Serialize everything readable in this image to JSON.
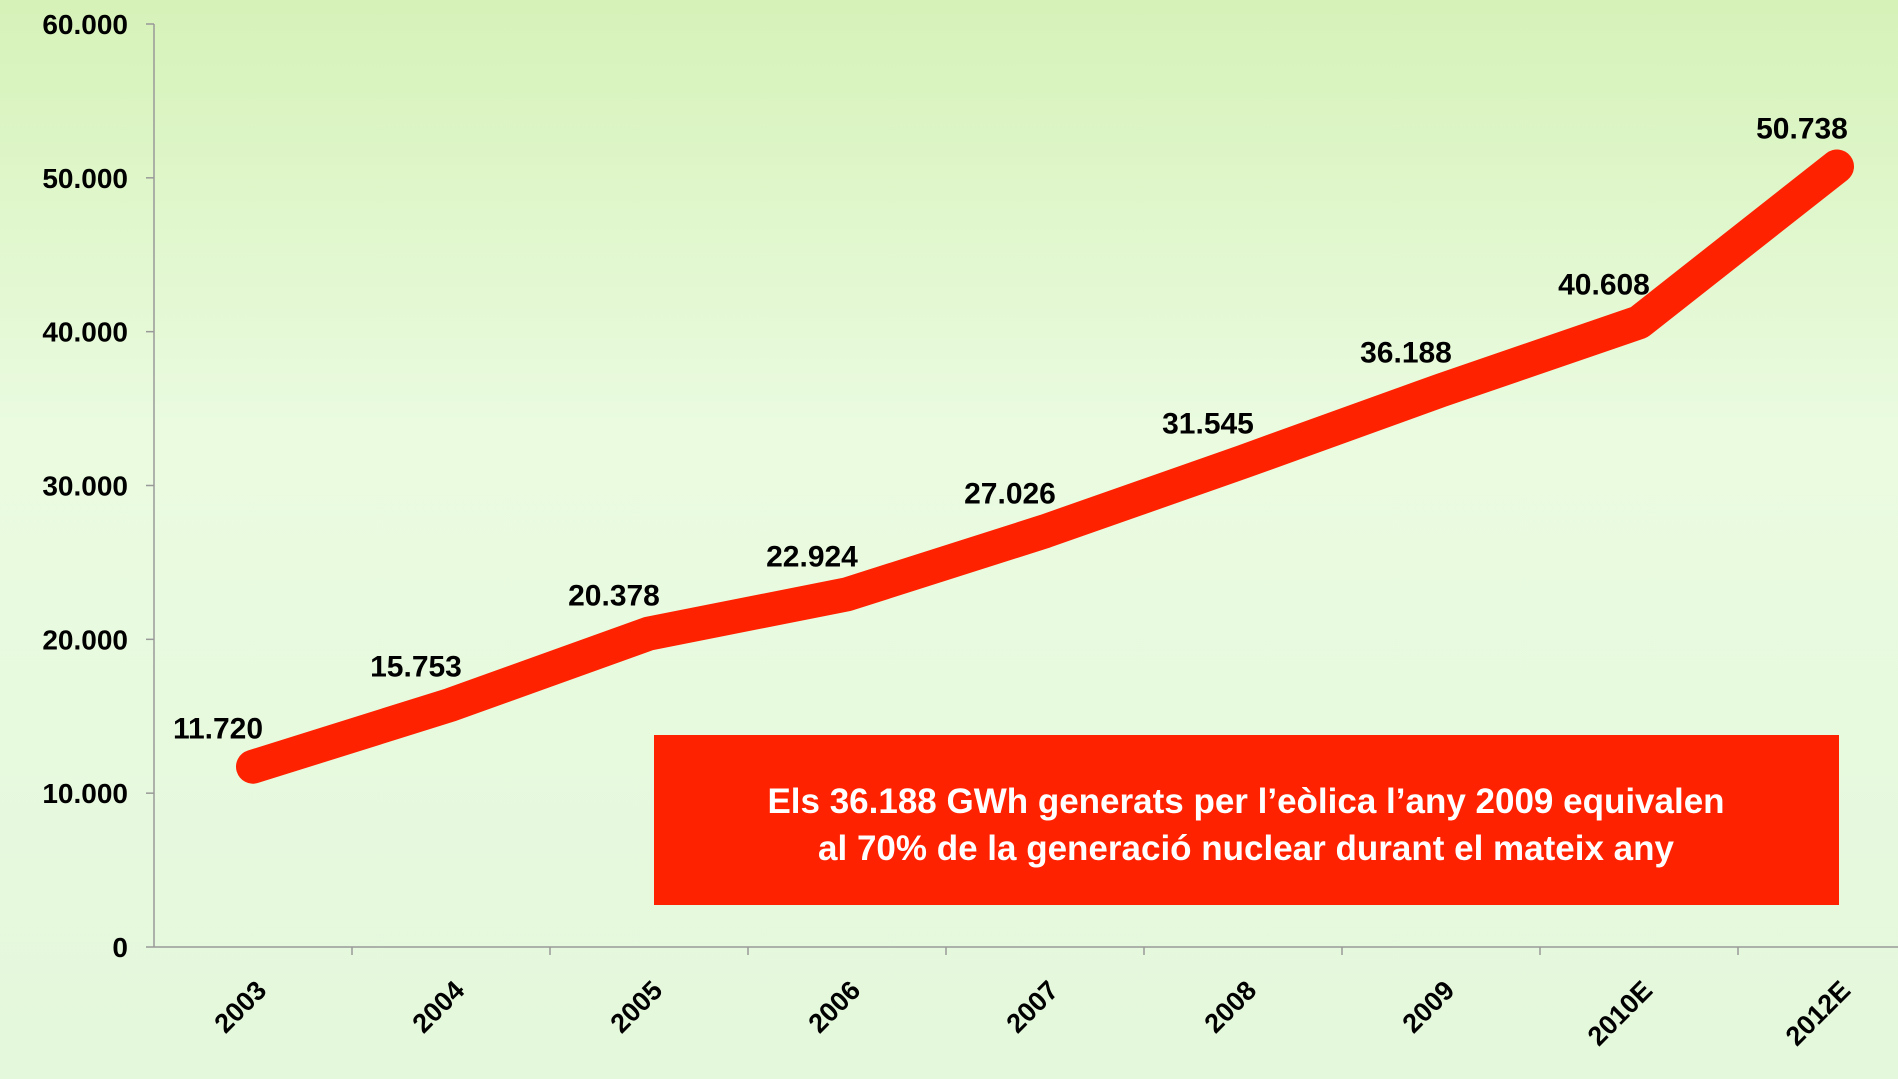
{
  "chart_data": {
    "type": "line",
    "categories": [
      "2003",
      "2004",
      "2005",
      "2006",
      "2007",
      "2008",
      "2009",
      "2010E",
      "2012E"
    ],
    "series": [
      {
        "name": "GWh",
        "color": "#ff2200",
        "values": [
          11720,
          15753,
          20378,
          22924,
          27026,
          31545,
          36188,
          40608,
          50738
        ],
        "value_labels": [
          "11.720",
          "15.753",
          "20.378",
          "22.924",
          "27.026",
          "31.545",
          "36.188",
          "40.608",
          "50.738"
        ]
      }
    ],
    "ylim": [
      0,
      60000
    ],
    "yticks": [
      {
        "value": 0,
        "label": "0"
      },
      {
        "value": 10000,
        "label": "10.000"
      },
      {
        "value": 20000,
        "label": "20.000"
      },
      {
        "value": 30000,
        "label": "30.000"
      },
      {
        "value": 40000,
        "label": "40.000"
      },
      {
        "value": 50000,
        "label": "50.000"
      },
      {
        "value": 60000,
        "label": "60.000"
      }
    ],
    "annotation": [
      "Els 36.188 GWh generats per l’eòlica l’any 2009 equivalen",
      "al 70% de la generació nuclear durant el mateix any"
    ],
    "annotation_color": "#ff2200"
  }
}
